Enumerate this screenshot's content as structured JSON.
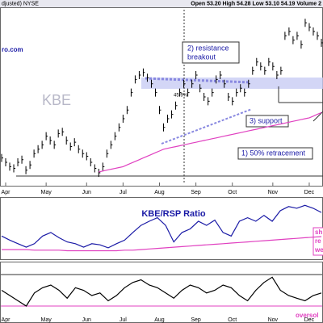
{
  "chart_data": {
    "type": "ohlc",
    "header_left": "djusted) NYSE",
    "header_right": "Open 53.20  High 54.28  Low 53.10  54.19  Volume 2",
    "watermark": "KBE",
    "site": "ro.com",
    "annotations": [
      "2) resistance",
      "breakout",
      "3) support",
      "1) 50% retracement",
      "45.9%"
    ],
    "x_labels": [
      {
        "label": "Apr",
        "index": 1
      },
      {
        "label": "May",
        "index": 11
      },
      {
        "label": "Jun",
        "index": 21
      },
      {
        "label": "Jul",
        "index": 30
      },
      {
        "label": "Aug",
        "index": 39
      },
      {
        "label": "Sep",
        "index": 48
      },
      {
        "label": "Oct",
        "index": 57
      },
      {
        "label": "Nov",
        "index": 67
      },
      {
        "label": "Dec",
        "index": 76
      }
    ],
    "ylim": [
      38,
      58
    ],
    "series": [
      {
        "color": "#000000",
        "values": [
          41.0,
          40.5,
          40.0,
          39.8,
          40.5,
          40.8,
          39.6,
          40.2,
          41.5,
          42.0,
          42.5,
          43.5,
          43.0,
          42.5,
          43.8,
          44.0,
          43.0,
          42.3,
          42.8,
          42.0,
          41.5,
          41.2,
          40.5,
          39.8,
          39.3,
          40.0,
          41.5,
          42.5,
          43.5,
          44.5,
          45.5,
          46.5,
          48.5,
          50.0,
          50.5,
          50.8,
          50.2,
          49.5,
          48.5,
          46.5,
          44.5,
          45.5,
          46.0,
          47.0,
          48.5,
          49.5,
          48.5,
          49.5,
          50.5,
          49.0,
          48.0,
          47.5,
          48.5,
          50.0,
          50.5,
          49.5,
          48.0,
          47.5,
          48.5,
          49.0,
          48.5,
          49.5,
          51.0,
          52.0,
          51.5,
          51.0,
          52.0,
          51.5,
          50.5,
          51.0,
          55.0,
          55.5,
          54.5,
          55.0,
          54.0,
          56.5,
          56.0,
          55.5,
          55.0,
          54.2
        ]
      },
      {
        "color": "#e040c0",
        "values": [
          null,
          null,
          null,
          null,
          null,
          null,
          null,
          null,
          null,
          null,
          null,
          null,
          null,
          null,
          null,
          null,
          null,
          null,
          null,
          null,
          null,
          null,
          null,
          null,
          39.4,
          39.5,
          39.6,
          39.7,
          39.8,
          39.9,
          40.0,
          40.2,
          40.4,
          40.6,
          40.8,
          41.0,
          41.2,
          41.4,
          41.6,
          41.8,
          42.0,
          42.1,
          42.2,
          42.3,
          42.4,
          42.5,
          42.6,
          42.7,
          42.8,
          42.9,
          43.0,
          43.1,
          43.2,
          43.3,
          43.4,
          43.5,
          43.6,
          43.7,
          43.8,
          43.9,
          44.0,
          44.1,
          44.2,
          44.3,
          44.4,
          44.5,
          44.6,
          44.7,
          44.8,
          44.9,
          45.0,
          45.1,
          45.2,
          45.3,
          45.4,
          45.5,
          45.6,
          45.8,
          46.0,
          46.2
        ]
      }
    ],
    "ratio": {
      "title": "KBE/RSP Ratio",
      "notes": [
        "sh",
        "re",
        "we"
      ],
      "ylim": [
        0,
        10
      ],
      "series": [
        {
          "color": "#1a1aa6",
          "values": [
            3.8,
            3.1,
            2.5,
            1.9,
            2.5,
            3.8,
            4.4,
            3.5,
            2.8,
            2.5,
            1.9,
            2.5,
            2.3,
            1.8,
            2.5,
            3.1,
            4.4,
            5.6,
            6.3,
            6.9,
            5.6,
            2.8,
            4.4,
            5.0,
            6.3,
            5.6,
            6.5,
            4.4,
            3.8,
            6.3,
            6.9,
            6.3,
            7.3,
            6.3,
            8.1,
            8.8,
            8.5,
            9.0,
            8.5,
            7.8
          ]
        },
        {
          "color": "#e040c0",
          "values": [
            1.5,
            1.5,
            1.5,
            1.5,
            1.4,
            1.4,
            1.4,
            1.4,
            1.3,
            1.3,
            1.3,
            1.3,
            1.3,
            1.3,
            1.3,
            1.4,
            1.4,
            1.5,
            1.6,
            1.7,
            1.8,
            1.9,
            2.0,
            2.1,
            2.2,
            2.3,
            2.4,
            2.5,
            2.6,
            2.7,
            2.8,
            2.9,
            3.0,
            3.1,
            3.2,
            3.3,
            3.4,
            3.5,
            3.6,
            3.7
          ]
        }
      ]
    },
    "oscillator": {
      "note": "oversol",
      "ylim": [
        0,
        100
      ],
      "levels": [
        80,
        20
      ],
      "series": [
        {
          "color": "#000000",
          "values": [
            50,
            40,
            30,
            20,
            45,
            55,
            60,
            50,
            35,
            55,
            50,
            40,
            45,
            30,
            40,
            55,
            65,
            70,
            60,
            55,
            45,
            35,
            50,
            60,
            55,
            45,
            50,
            60,
            55,
            40,
            30,
            50,
            65,
            75,
            50,
            40,
            35,
            30,
            40,
            45
          ]
        }
      ]
    }
  }
}
